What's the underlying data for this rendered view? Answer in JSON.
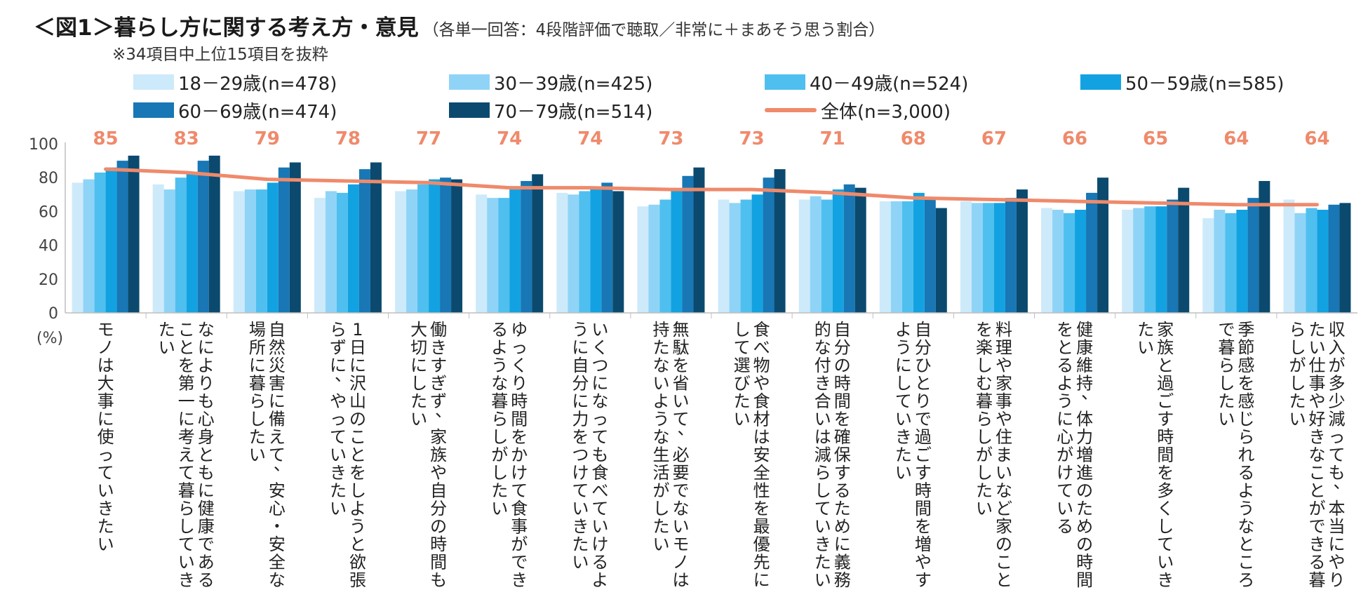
{
  "header": {
    "title": "＜図1＞暮らし方に関する考え方・意見",
    "subtitle": "（各単一回答：4段階評価で聴取／非常に＋まあそう思う割合）",
    "note": "※34項目中上位15項目を抜粋",
    "unit": "(%)"
  },
  "colors": {
    "s1": "#cdeafb",
    "s2": "#8fd4f7",
    "s3": "#4fbfef",
    "s4": "#13a2e1",
    "s5": "#1877b4",
    "s6": "#0b4a6e",
    "total": "#ef8a6b"
  },
  "chart_data": {
    "type": "bar",
    "ylim": [
      0,
      100
    ],
    "yticks": [
      0,
      20,
      40,
      60,
      80,
      100
    ],
    "categories": [
      "モノは大事に使っていきたい",
      "なによりも心身ともに健康であることを第一に考えて暮らしていきたい",
      "自然災害に備えて、安心・安全な場所に暮らしたい",
      "1日に沢山のことをしようと欲張らずに、やっていきたい",
      "働きすぎず、家族や自分の時間も大切にしたい",
      "ゆっくり時間をかけて食事ができるような暮らしがしたい",
      "いくつになっても食べていけるように自分に力をつけていきたい",
      "無駄を省いて、必要でないモノは持たないような生活がしたい",
      "食べ物や食材は安全性を最優先にして選びたい",
      "自分の時間を確保するために義務的な付き合いは減らしていきたい",
      "自分ひとりで過ごす時間を増やすようにしていきたい",
      "料理や家事や住まいなど家のことを楽しむ暮らしがしたい",
      "健康維持、体力増進のための時間をとるように心がけている",
      "家族と過ごす時間を多くしていきたい",
      "季節感を感じられるようなところで暮らしたい",
      "収入が多少減っても、本当にやりたい仕事や好きなことができる暮らしがしたい"
    ],
    "series": [
      {
        "name": "18－29歳(n=478)",
        "values": [
          77,
          76,
          72,
          68,
          72,
          70,
          71,
          63,
          67,
          67,
          66,
          66,
          62,
          61,
          56,
          67
        ]
      },
      {
        "name": "30－39歳(n=425)",
        "values": [
          79,
          73,
          73,
          72,
          73,
          68,
          70,
          64,
          65,
          69,
          66,
          65,
          61,
          62,
          61,
          59
        ]
      },
      {
        "name": "40－49歳(n=524)",
        "values": [
          83,
          80,
          73,
          71,
          76,
          68,
          72,
          67,
          67,
          67,
          66,
          65,
          59,
          63,
          59,
          62
        ]
      },
      {
        "name": "50－59歳(n=585)",
        "values": [
          86,
          82,
          77,
          76,
          79,
          73,
          74,
          72,
          70,
          73,
          71,
          65,
          61,
          63,
          61,
          61
        ]
      },
      {
        "name": "60－69歳(n=474)",
        "values": [
          90,
          90,
          86,
          85,
          80,
          78,
          77,
          81,
          80,
          76,
          68,
          68,
          71,
          67,
          68,
          64
        ]
      },
      {
        "name": "70－79歳(n=514)",
        "values": [
          93,
          93,
          89,
          89,
          79,
          82,
          72,
          86,
          85,
          74,
          62,
          73,
          80,
          74,
          78,
          65
        ]
      }
    ],
    "total": {
      "name": "全体(n=3,000)",
      "values": [
        85,
        83,
        79,
        78,
        77,
        74,
        74,
        73,
        73,
        71,
        68,
        67,
        66,
        65,
        64,
        64
      ]
    }
  }
}
